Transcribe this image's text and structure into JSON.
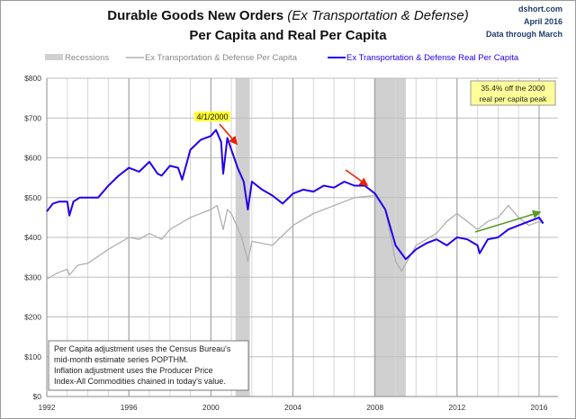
{
  "chart_data": {
    "type": "line",
    "title_main": "Durable Goods New Orders ",
    "title_italic": "(Ex Transportation & Defense)",
    "subtitle": "Per Capita and Real Per Capita",
    "source": [
      "dshort.com",
      "April 2016",
      "Data through March"
    ],
    "legend": {
      "placement": "top",
      "recessions": "Recessions",
      "nominal": "Ex Transportation & Defense Per Capita",
      "real": "Ex Transportation & Defense Real Per Capita"
    },
    "xlim": [
      1992,
      2016.9
    ],
    "ylim": [
      0,
      800
    ],
    "xticks": [
      1992,
      1996,
      2000,
      2004,
      2008,
      2012,
      2016
    ],
    "xtick_labels": [
      "1992",
      "1996",
      "2000",
      "2004",
      "2008",
      "2012",
      "2016"
    ],
    "yticks": [
      0,
      100,
      200,
      300,
      400,
      500,
      600,
      700,
      800
    ],
    "ytick_labels": [
      "$0",
      "$100",
      "$200",
      "$300",
      "$400",
      "$500",
      "$600",
      "$700",
      "$800"
    ],
    "grid": true,
    "recessions": [
      [
        2001.2,
        2001.9
      ],
      [
        2007.95,
        2009.5
      ]
    ],
    "colors": {
      "real": "#2200ee",
      "nominal": "#b0b0b0",
      "recession": "#d0d0d0",
      "red_arrow": "#ee2200",
      "green_arrow": "#5a9a2a",
      "tag": "#ffff33",
      "note_box": "#ffff99"
    },
    "series": [
      {
        "name": "Ex Transportation & Defense Real Per Capita",
        "x": [
          1992,
          1992.3,
          1992.6,
          1993,
          1993.1,
          1993.3,
          1993.6,
          1994,
          1994.5,
          1995,
          1995.5,
          1996,
          1996.5,
          1997,
          1997.4,
          1997.6,
          1998,
          1998.4,
          1998.6,
          1999,
          1999.5,
          2000,
          2000.25,
          2000.5,
          2000.6,
          2000.8,
          2001,
          2001.3,
          2001.6,
          2001.8,
          2002,
          2002.5,
          2003,
          2003.5,
          2004,
          2004.5,
          2005,
          2005.5,
          2006,
          2006.5,
          2007,
          2007.5,
          2008,
          2008.5,
          2009,
          2009.5,
          2010,
          2010.5,
          2011,
          2011.5,
          2012,
          2012.5,
          2013,
          2013.1,
          2013.5,
          2014,
          2014.5,
          2015,
          2015.5,
          2016,
          2016.2
        ],
        "values": [
          465,
          485,
          490,
          490,
          455,
          490,
          500,
          500,
          500,
          530,
          555,
          575,
          565,
          590,
          560,
          555,
          580,
          575,
          545,
          620,
          645,
          655,
          670,
          640,
          560,
          650,
          620,
          575,
          540,
          470,
          540,
          520,
          505,
          485,
          510,
          520,
          515,
          530,
          525,
          540,
          530,
          530,
          510,
          470,
          380,
          345,
          370,
          385,
          395,
          380,
          400,
          395,
          380,
          360,
          395,
          400,
          420,
          430,
          440,
          450,
          435
        ]
      },
      {
        "name": "Ex Transportation & Defense Per Capita",
        "x": [
          1992,
          1992.5,
          1993,
          1993.1,
          1993.5,
          1994,
          1995,
          1996,
          1996.5,
          1997,
          1997.6,
          1998,
          1999,
          2000,
          2000.3,
          2000.6,
          2000.8,
          2001,
          2001.5,
          2001.8,
          2002,
          2003,
          2004,
          2005,
          2006,
          2007,
          2008,
          2008.5,
          2009,
          2009.3,
          2010,
          2011,
          2011.5,
          2012,
          2012.5,
          2013,
          2013.5,
          2014,
          2014.5,
          2015,
          2015.5,
          2016,
          2016.2
        ],
        "values": [
          295,
          310,
          320,
          305,
          330,
          335,
          370,
          400,
          395,
          410,
          395,
          420,
          450,
          470,
          480,
          420,
          470,
          460,
          400,
          340,
          390,
          380,
          430,
          460,
          480,
          500,
          505,
          470,
          340,
          315,
          380,
          410,
          440,
          460,
          440,
          420,
          440,
          450,
          480,
          450,
          430,
          440,
          435
        ]
      }
    ],
    "annotations": {
      "peak_tag": "4/1/2000",
      "off_peak_note": [
        "35.4% off the 2000",
        "real per capita peak"
      ],
      "method_note": [
        "Per Capita adjustment uses the Census Bureau's",
        "mid-month estimate series POPTHM.",
        "Inflation adjustment uses the Producer Price",
        "Index-All Commodities chained in today's value."
      ]
    }
  }
}
